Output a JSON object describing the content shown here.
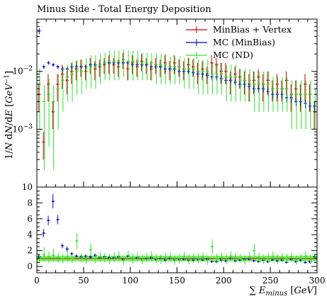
{
  "chart_data": [
    {
      "type": "scatter",
      "panel": "main",
      "title": "Minus Side - Total Energy Deposition",
      "ylabel": "1/N dN/dE [GeV^{-1}]",
      "yscale": "log",
      "xlim": [
        0,
        300
      ],
      "ylim": [
        0.0001,
        0.08
      ],
      "y_tick_labels": [
        {
          "value": 0.001,
          "base": "10",
          "exp": "−3"
        },
        {
          "value": 0.01,
          "base": "10",
          "exp": "−2"
        }
      ],
      "legend_position": "top-right",
      "series": [
        {
          "name": "MinBias + Vertex",
          "color": "#d00000",
          "x": [
            2.5,
            7.5,
            12.5,
            17.5,
            22.5,
            27.5,
            32.5,
            37.5,
            42.5,
            47.5,
            52.5,
            57.5,
            62.5,
            67.5,
            72.5,
            77.5,
            82.5,
            87.5,
            92.5,
            97.5,
            102.5,
            107.5,
            112.5,
            117.5,
            122.5,
            127.5,
            132.5,
            137.5,
            142.5,
            147.5,
            152.5,
            157.5,
            162.5,
            167.5,
            172.5,
            177.5,
            182.5,
            187.5,
            192.5,
            197.5,
            202.5,
            207.5,
            212.5,
            217.5,
            222.5,
            227.5,
            232.5,
            237.5,
            242.5,
            247.5,
            252.5,
            257.5,
            262.5,
            267.5,
            272.5,
            277.5,
            282.5,
            287.5,
            292.5,
            297.5
          ],
          "y": [
            0.004,
            0.0006,
            0.006,
            0.002,
            0.006,
            0.009,
            0.007,
            0.01,
            0.011,
            0.012,
            0.01,
            0.013,
            0.011,
            0.012,
            0.013,
            0.014,
            0.013,
            0.012,
            0.016,
            0.011,
            0.014,
            0.012,
            0.015,
            0.013,
            0.011,
            0.013,
            0.012,
            0.014,
            0.011,
            0.014,
            0.012,
            0.011,
            0.013,
            0.012,
            0.01,
            0.011,
            0.009,
            0.014,
            0.013,
            0.01,
            0.01,
            0.007,
            0.009,
            0.008,
            0.007,
            0.006,
            0.007,
            0.008,
            0.006,
            0.007,
            0.005,
            0.006,
            0.005,
            0.007,
            0.004,
            0.005,
            0.004,
            0.006,
            0.004,
            0.002
          ],
          "err": [
            0.002,
            0.0003,
            0.003,
            0.001,
            0.003,
            0.004,
            0.003,
            0.004,
            0.004,
            0.004,
            0.003,
            0.004,
            0.004,
            0.004,
            0.004,
            0.005,
            0.004,
            0.004,
            0.005,
            0.004,
            0.005,
            0.004,
            0.005,
            0.004,
            0.004,
            0.004,
            0.004,
            0.005,
            0.004,
            0.005,
            0.004,
            0.004,
            0.004,
            0.004,
            0.004,
            0.004,
            0.003,
            0.005,
            0.004,
            0.004,
            0.004,
            0.003,
            0.003,
            0.003,
            0.003,
            0.003,
            0.003,
            0.003,
            0.003,
            0.003,
            0.002,
            0.003,
            0.002,
            0.003,
            0.002,
            0.002,
            0.002,
            0.003,
            0.002,
            0.001
          ]
        },
        {
          "name": "MC (MinBias)",
          "color": "#0000d0",
          "x": [
            2.5,
            7.5,
            12.5,
            17.5,
            22.5,
            27.5,
            32.5,
            37.5,
            42.5,
            47.5,
            52.5,
            57.5,
            62.5,
            67.5,
            72.5,
            77.5,
            82.5,
            87.5,
            92.5,
            97.5,
            102.5,
            107.5,
            112.5,
            117.5,
            122.5,
            127.5,
            132.5,
            137.5,
            142.5,
            147.5,
            152.5,
            157.5,
            162.5,
            167.5,
            172.5,
            177.5,
            182.5,
            187.5,
            192.5,
            197.5,
            202.5,
            207.5,
            212.5,
            217.5,
            222.5,
            227.5,
            232.5,
            237.5,
            242.5,
            247.5,
            252.5,
            257.5,
            262.5,
            267.5,
            272.5,
            277.5,
            282.5,
            287.5,
            292.5,
            297.5
          ],
          "y": [
            0.05,
            0.012,
            0.014,
            0.013,
            0.012,
            0.011,
            0.011,
            0.012,
            0.012,
            0.012,
            0.012,
            0.013,
            0.013,
            0.013,
            0.014,
            0.014,
            0.014,
            0.014,
            0.014,
            0.014,
            0.013,
            0.013,
            0.013,
            0.013,
            0.012,
            0.012,
            0.012,
            0.011,
            0.011,
            0.011,
            0.01,
            0.01,
            0.01,
            0.0095,
            0.009,
            0.009,
            0.0085,
            0.008,
            0.008,
            0.0075,
            0.007,
            0.007,
            0.0065,
            0.006,
            0.006,
            0.0055,
            0.005,
            0.005,
            0.005,
            0.0045,
            0.004,
            0.004,
            0.004,
            0.0035,
            0.0035,
            0.003,
            0.003,
            0.0028,
            0.0025,
            0.0025
          ],
          "err": [
            0.006,
            0.001,
            0.001,
            0.001,
            0.001,
            0.001,
            0.001,
            0.001,
            0.001,
            0.001,
            0.001,
            0.001,
            0.001,
            0.001,
            0.001,
            0.001,
            0.001,
            0.001,
            0.001,
            0.001,
            0.001,
            0.001,
            0.001,
            0.001,
            0.001,
            0.001,
            0.001,
            0.001,
            0.001,
            0.001,
            0.001,
            0.001,
            0.001,
            0.001,
            0.001,
            0.001,
            0.001,
            0.001,
            0.001,
            0.001,
            0.0008,
            0.0008,
            0.0008,
            0.0008,
            0.0008,
            0.0007,
            0.0007,
            0.0007,
            0.0007,
            0.0007,
            0.0006,
            0.0006,
            0.0006,
            0.0006,
            0.0006,
            0.0005,
            0.0005,
            0.0005,
            0.0005,
            0.0005
          ]
        },
        {
          "name": "MC (ND)",
          "color": "#30e030",
          "x": [
            2.5,
            7.5,
            12.5,
            17.5,
            22.5,
            27.5,
            32.5,
            37.5,
            42.5,
            47.5,
            52.5,
            57.5,
            62.5,
            67.5,
            72.5,
            77.5,
            82.5,
            87.5,
            92.5,
            97.5,
            102.5,
            107.5,
            112.5,
            117.5,
            122.5,
            127.5,
            132.5,
            137.5,
            142.5,
            147.5,
            152.5,
            157.5,
            162.5,
            167.5,
            172.5,
            177.5,
            182.5,
            187.5,
            192.5,
            197.5,
            202.5,
            207.5,
            212.5,
            217.5,
            222.5,
            227.5,
            232.5,
            237.5,
            242.5,
            247.5,
            252.5,
            257.5,
            262.5,
            267.5,
            272.5,
            277.5,
            282.5,
            287.5,
            292.5,
            297.5
          ],
          "y": [
            0.006,
            0.003,
            0.004,
            0.003,
            0.005,
            0.007,
            0.008,
            0.009,
            0.01,
            0.01,
            0.011,
            0.012,
            0.012,
            0.013,
            0.014,
            0.015,
            0.015,
            0.015,
            0.016,
            0.015,
            0.015,
            0.015,
            0.014,
            0.014,
            0.014,
            0.013,
            0.013,
            0.013,
            0.012,
            0.012,
            0.012,
            0.011,
            0.011,
            0.011,
            0.01,
            0.01,
            0.01,
            0.009,
            0.009,
            0.009,
            0.008,
            0.008,
            0.008,
            0.007,
            0.007,
            0.007,
            0.006,
            0.006,
            0.006,
            0.006,
            0.005,
            0.005,
            0.005,
            0.005,
            0.004,
            0.004,
            0.004,
            0.004,
            0.004,
            0.003
          ],
          "err": [
            0.005,
            0.0028,
            0.0035,
            0.0028,
            0.004,
            0.005,
            0.005,
            0.006,
            0.006,
            0.006,
            0.006,
            0.007,
            0.007,
            0.007,
            0.007,
            0.008,
            0.008,
            0.008,
            0.008,
            0.008,
            0.008,
            0.008,
            0.007,
            0.007,
            0.007,
            0.007,
            0.007,
            0.007,
            0.006,
            0.006,
            0.006,
            0.006,
            0.006,
            0.006,
            0.006,
            0.006,
            0.006,
            0.005,
            0.005,
            0.005,
            0.005,
            0.005,
            0.005,
            0.004,
            0.004,
            0.004,
            0.004,
            0.004,
            0.004,
            0.004,
            0.003,
            0.003,
            0.003,
            0.003,
            0.003,
            0.003,
            0.003,
            0.003,
            0.003,
            0.002
          ]
        }
      ]
    },
    {
      "type": "scatter",
      "panel": "ratio",
      "xlabel": "∑ E_minus [GeV]",
      "xlim": [
        0,
        300
      ],
      "ylim": [
        -0.8,
        10
      ],
      "x_ticks": [
        0,
        50,
        100,
        150,
        200,
        250,
        300
      ],
      "y_ticks": [
        0,
        2,
        4,
        6,
        8,
        10
      ],
      "band": {
        "color": "#66ee44",
        "y_low": 0.65,
        "y_high": 1.35
      },
      "series": [
        {
          "name": "MC (MinBias)",
          "color": "#0000d0",
          "x": [
            2.5,
            7.5,
            12.5,
            17.5,
            22.5,
            27.5,
            32.5,
            37.5,
            42.5,
            47.5,
            52.5,
            57.5,
            62.5,
            67.5,
            72.5,
            77.5,
            82.5,
            87.5,
            92.5,
            97.5,
            102.5,
            107.5,
            112.5,
            117.5,
            122.5,
            127.5,
            132.5,
            137.5,
            142.5,
            147.5,
            152.5,
            157.5,
            162.5,
            167.5,
            172.5,
            177.5,
            182.5,
            187.5,
            192.5,
            197.5,
            202.5,
            207.5,
            212.5,
            217.5,
            222.5,
            227.5,
            232.5,
            237.5,
            242.5,
            247.5,
            252.5,
            257.5,
            262.5,
            267.5,
            272.5,
            277.5,
            282.5,
            287.5,
            292.5,
            297.5
          ],
          "y": [
            1.2,
            4.2,
            5.8,
            8.2,
            5.9,
            2.6,
            2.2,
            1.6,
            1.3,
            1.2,
            1.3,
            1.2,
            1.4,
            1.1,
            1.2,
            1.1,
            1.1,
            1.2,
            0.9,
            1.3,
            1.0,
            1.1,
            0.9,
            1.0,
            1.1,
            0.9,
            1.0,
            0.8,
            1.0,
            0.8,
            0.9,
            0.9,
            0.8,
            0.8,
            0.9,
            0.8,
            0.9,
            0.6,
            0.6,
            0.8,
            0.7,
            1.0,
            0.7,
            0.8,
            0.9,
            0.9,
            0.7,
            0.6,
            0.8,
            0.6,
            0.8,
            0.7,
            0.8,
            0.5,
            0.9,
            0.6,
            0.8,
            0.5,
            0.6,
            1.2
          ],
          "err": [
            0.3,
            0.5,
            0.6,
            0.9,
            0.6,
            0.3,
            0.3,
            0.2,
            0.2,
            0.2,
            0.2,
            0.2,
            0.2,
            0.15,
            0.15,
            0.15,
            0.15,
            0.15,
            0.15,
            0.15,
            0.15,
            0.15,
            0.15,
            0.15,
            0.15,
            0.15,
            0.15,
            0.15,
            0.15,
            0.15,
            0.15,
            0.15,
            0.15,
            0.15,
            0.15,
            0.15,
            0.15,
            0.15,
            0.15,
            0.15,
            0.15,
            0.15,
            0.15,
            0.15,
            0.15,
            0.15,
            0.15,
            0.15,
            0.15,
            0.15,
            0.15,
            0.15,
            0.15,
            0.15,
            0.15,
            0.15,
            0.15,
            0.15,
            0.15,
            0.2
          ]
        },
        {
          "name": "MC (ND)",
          "color": "#30e030",
          "x": [
            2.5,
            7.5,
            12.5,
            17.5,
            22.5,
            27.5,
            32.5,
            37.5,
            42.5,
            47.5,
            52.5,
            57.5,
            62.5,
            67.5,
            72.5,
            77.5,
            82.5,
            87.5,
            92.5,
            97.5,
            102.5,
            107.5,
            112.5,
            117.5,
            122.5,
            127.5,
            132.5,
            137.5,
            142.5,
            147.5,
            152.5,
            157.5,
            162.5,
            167.5,
            172.5,
            177.5,
            182.5,
            187.5,
            192.5,
            197.5,
            202.5,
            207.5,
            212.5,
            217.5,
            222.5,
            227.5,
            232.5,
            237.5,
            242.5,
            247.5,
            252.5,
            257.5,
            262.5,
            267.5,
            272.5,
            277.5,
            282.5,
            287.5,
            292.5,
            297.5
          ],
          "y": [
            1.0,
            1.5,
            1.2,
            1.4,
            1.1,
            1.0,
            1.3,
            1.0,
            3.2,
            1.1,
            0.9,
            2.1,
            1.0,
            1.2,
            1.1,
            0.9,
            1.2,
            1.3,
            0.8,
            1.4,
            1.0,
            1.2,
            0.9,
            1.1,
            1.3,
            1.0,
            0.9,
            1.1,
            1.2,
            0.8,
            1.0,
            1.3,
            0.9,
            1.1,
            1.0,
            1.2,
            0.8,
            2.5,
            1.0,
            1.1,
            0.9,
            1.3,
            1.1,
            1.0,
            0.8,
            1.2,
            2.0,
            1.1,
            0.9,
            1.0,
            1.3,
            0.9,
            1.1,
            1.0,
            1.2,
            0.8,
            1.0,
            1.3,
            0.9,
            1.1
          ],
          "err": [
            0.6,
            0.9,
            0.7,
            0.8,
            0.6,
            0.6,
            0.7,
            0.6,
            1.0,
            0.6,
            0.6,
            0.8,
            0.6,
            0.6,
            0.6,
            0.6,
            0.6,
            0.6,
            0.6,
            0.6,
            0.6,
            0.6,
            0.6,
            0.6,
            0.6,
            0.6,
            0.6,
            0.6,
            0.6,
            0.6,
            0.6,
            0.6,
            0.6,
            0.6,
            0.6,
            0.6,
            0.6,
            0.9,
            0.6,
            0.6,
            0.6,
            0.6,
            0.6,
            0.6,
            0.6,
            0.6,
            0.8,
            0.6,
            0.6,
            0.6,
            0.6,
            0.6,
            0.6,
            0.6,
            0.6,
            0.6,
            0.6,
            0.6,
            0.6,
            0.6
          ]
        }
      ]
    }
  ]
}
